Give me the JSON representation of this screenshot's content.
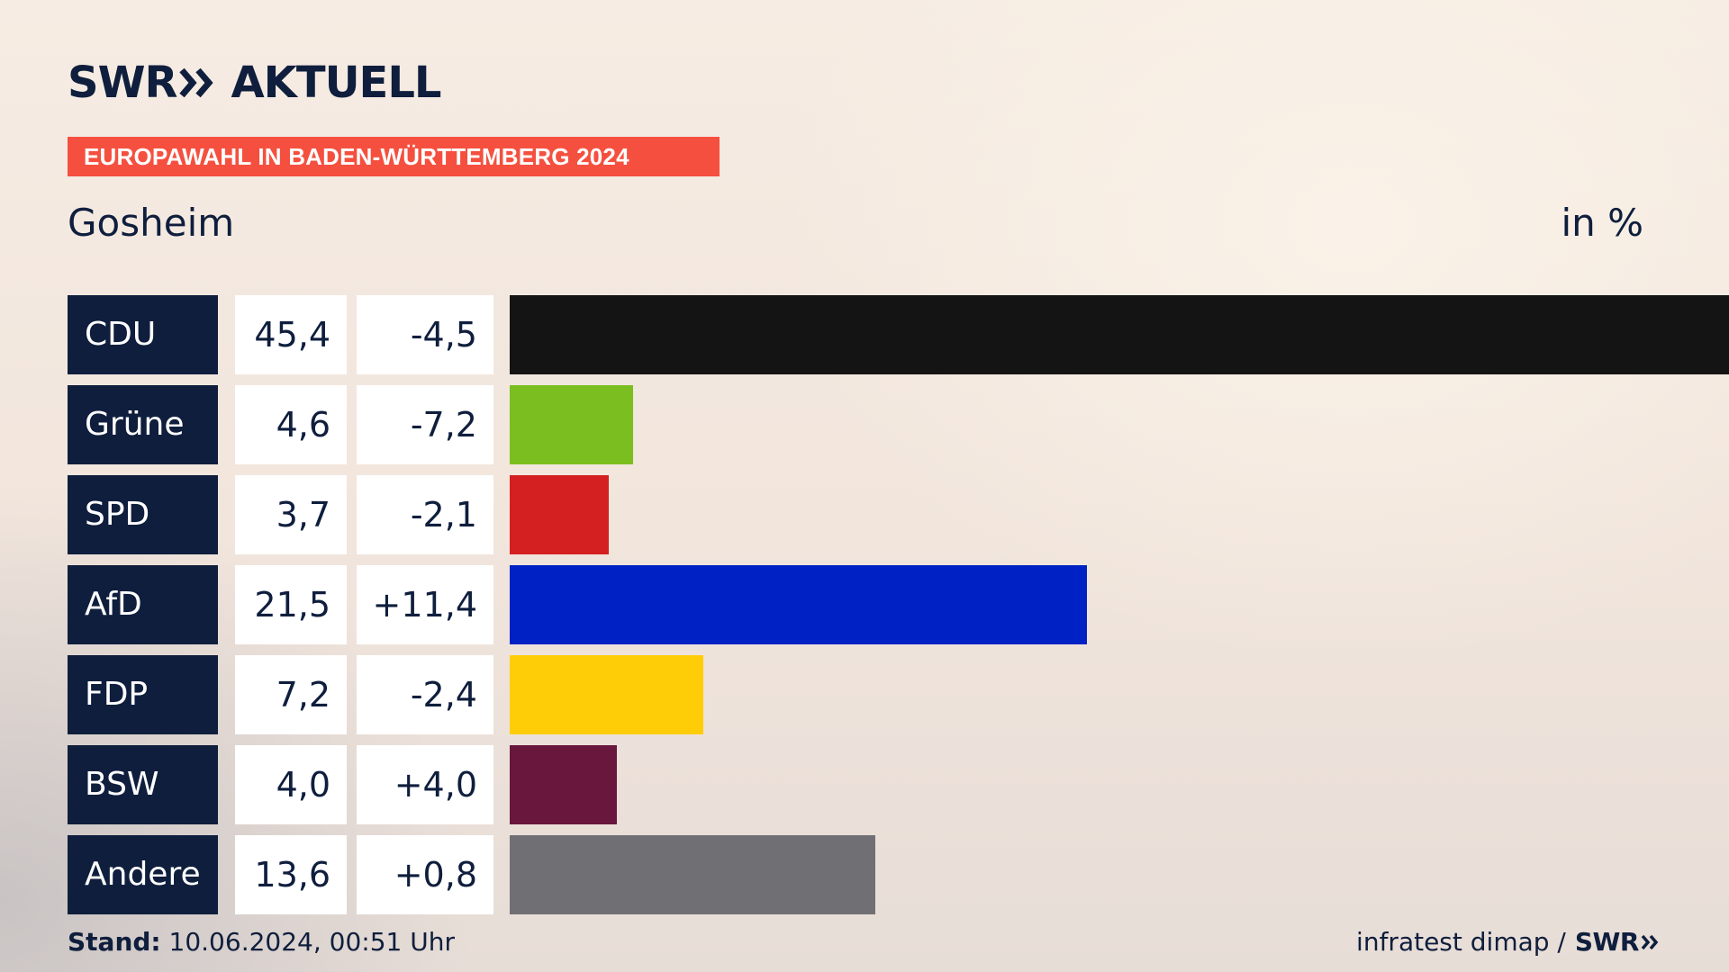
{
  "brand": {
    "logo_left": "SWR",
    "logo_right": "AKTUELL"
  },
  "header": {
    "tag": "EUROPAWAHL IN BADEN-WÜRTTEMBERG 2024",
    "region": "Gosheim",
    "unit": "in %"
  },
  "chart_data": {
    "type": "bar",
    "title": "EUROPAWAHL IN BADEN-WÜRTTEMBERG 2024",
    "subtitle": "Gosheim",
    "ylabel": "in %",
    "orientation": "horizontal",
    "categories": [
      "CDU",
      "Grüne",
      "SPD",
      "AfD",
      "FDP",
      "BSW",
      "Andere"
    ],
    "values": [
      45.4,
      4.6,
      3.7,
      21.5,
      7.2,
      4.0,
      13.6
    ],
    "value_labels": [
      "45,4",
      "4,6",
      "3,7",
      "21,5",
      "7,2",
      "4,0",
      "13,6"
    ],
    "diff_labels": [
      "-4,5",
      "-7,2",
      "-2,1",
      "+11,4",
      "-2,4",
      "+4,0",
      "+0,8"
    ],
    "diffs": [
      -4.5,
      -7.2,
      -2.1,
      11.4,
      -2.4,
      4.0,
      0.8
    ],
    "colors": [
      "#141414",
      "#7abf1f",
      "#d42020",
      "#0021c4",
      "#ffcc08",
      "#6a173e",
      "#707074"
    ],
    "xlim": [
      0,
      45.4
    ]
  },
  "footer": {
    "stand_label": "Stand:",
    "stand_value": "10.06.2024, 00:51 Uhr",
    "source": "infratest dimap /",
    "source_logo": "SWR"
  }
}
